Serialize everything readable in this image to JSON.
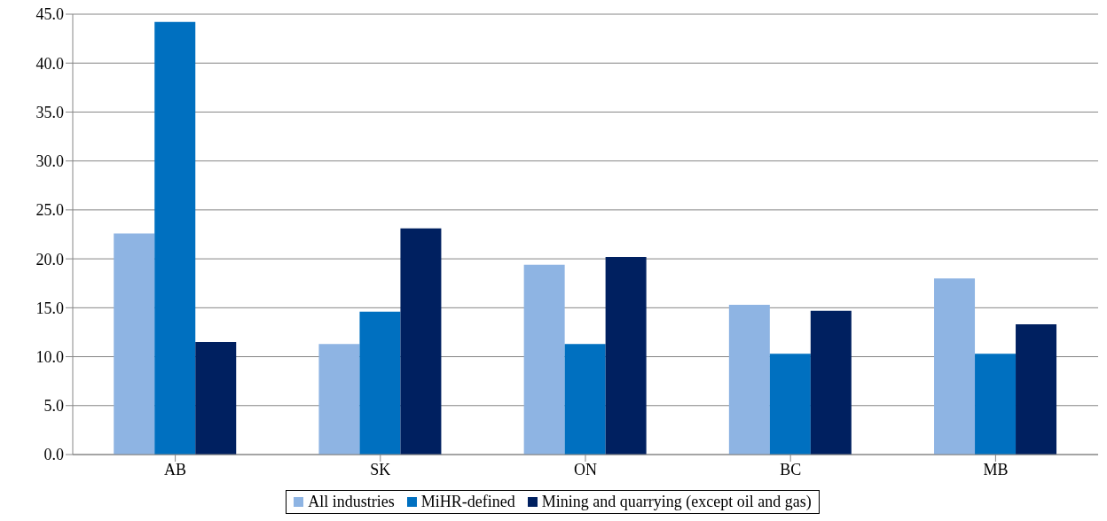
{
  "chart_data": {
    "type": "bar",
    "categories": [
      "AB",
      "SK",
      "ON",
      "BC",
      "MB"
    ],
    "series": [
      {
        "name": "All industries",
        "color": "#8eb4e3",
        "values": [
          22.6,
          11.3,
          19.4,
          15.3,
          18.0
        ]
      },
      {
        "name": "MiHR-defined",
        "color": "#0070c0",
        "values": [
          44.2,
          14.6,
          11.3,
          10.3,
          10.3
        ]
      },
      {
        "name": "Mining and quarrying (except oil and gas)",
        "color": "#002060",
        "values": [
          11.5,
          23.1,
          20.2,
          14.7,
          13.3
        ]
      }
    ],
    "ylim": [
      0,
      45
    ],
    "yticks": [
      {
        "value": 0,
        "label": "0.0"
      },
      {
        "value": 5,
        "label": "5.0"
      },
      {
        "value": 10,
        "label": "10.0"
      },
      {
        "value": 15,
        "label": "15.0"
      },
      {
        "value": 20,
        "label": "20.0"
      },
      {
        "value": 25,
        "label": "25.0"
      },
      {
        "value": 30,
        "label": "30.0"
      },
      {
        "value": 35,
        "label": "35.0"
      },
      {
        "value": 40,
        "label": "40.0"
      },
      {
        "value": 45,
        "label": "45.0"
      }
    ],
    "grid": "y",
    "legend": "bottom"
  }
}
